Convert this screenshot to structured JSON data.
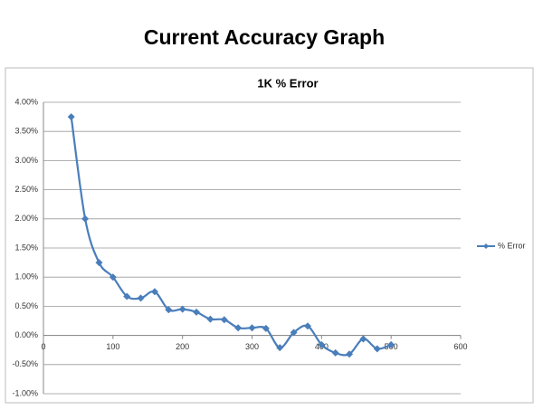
{
  "header": {
    "title": "Current Accuracy Graph"
  },
  "chart_data": {
    "type": "line",
    "title": "1K  % Error",
    "x": [
      40,
      60,
      80,
      100,
      120,
      140,
      160,
      180,
      200,
      220,
      240,
      260,
      280,
      300,
      320,
      340,
      360,
      380,
      400,
      420,
      440,
      460,
      480,
      500
    ],
    "series": [
      {
        "name": "% Error",
        "color": "#4a7ebb",
        "values": [
          3.75,
          2.0,
          1.25,
          1.0,
          0.67,
          0.64,
          0.75,
          0.44,
          0.45,
          0.4,
          0.28,
          0.27,
          0.13,
          0.13,
          0.12,
          -0.21,
          0.05,
          0.16,
          -0.16,
          -0.3,
          -0.32,
          -0.06,
          -0.23,
          -0.16
        ]
      }
    ],
    "xlim": [
      0,
      600
    ],
    "xticks": [
      0,
      100,
      200,
      300,
      400,
      500,
      600
    ],
    "ylim": [
      -1,
      4
    ],
    "yticks": [
      {
        "value": -1,
        "label": "-1.00%"
      },
      {
        "value": -0.5,
        "label": "-0.50%"
      },
      {
        "value": 0,
        "label": "0.00%"
      },
      {
        "value": 0.5,
        "label": "0.50%"
      },
      {
        "value": 1,
        "label": "1.00%"
      },
      {
        "value": 1.5,
        "label": "1.50%"
      },
      {
        "value": 2,
        "label": "2.00%"
      },
      {
        "value": 2.5,
        "label": "2.50%"
      },
      {
        "value": 3,
        "label": "3.00%"
      },
      {
        "value": 3.5,
        "label": "3.50%"
      },
      {
        "value": 4,
        "label": "4.00%"
      }
    ],
    "grid": true,
    "legend": "right",
    "smooth": true
  }
}
